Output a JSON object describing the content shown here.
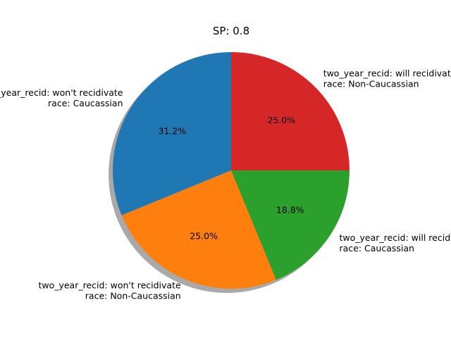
{
  "chart_data": {
    "type": "pie",
    "title": "SP: 0.8",
    "start_angle_deg": 90,
    "direction": "counterclockwise",
    "shadow": true,
    "slices": [
      {
        "label_lines": [
          "two_year_recid: won't recidivate",
          "race: Caucassian"
        ],
        "value": 31.2,
        "pct_label": "31.2%",
        "color": "#1f77b4"
      },
      {
        "label_lines": [
          "two_year_recid: won't recidivate",
          "race: Non-Caucassian"
        ],
        "value": 25.0,
        "pct_label": "25.0%",
        "color": "#ff7f0e"
      },
      {
        "label_lines": [
          "two_year_recid: will recidivate",
          "race: Caucassian"
        ],
        "value": 18.8,
        "pct_label": "18.8%",
        "color": "#2ca02c"
      },
      {
        "label_lines": [
          "two_year_recid: will recidivate",
          "race: Non-Caucassian"
        ],
        "value": 25.0,
        "pct_label": "25.0%",
        "color": "#d62728"
      }
    ]
  }
}
